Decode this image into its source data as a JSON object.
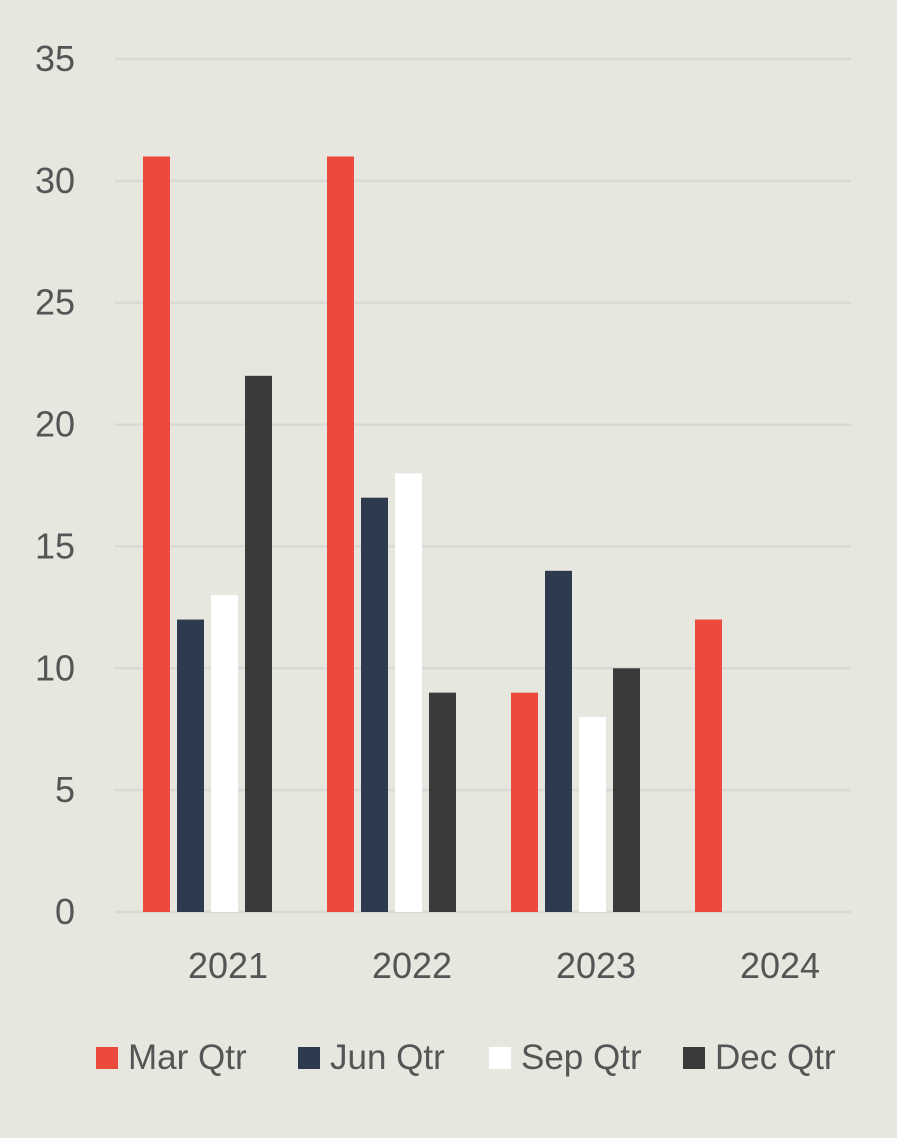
{
  "chart_data": {
    "type": "bar",
    "title": "",
    "xlabel": "",
    "ylabel": "",
    "categories": [
      "2021",
      "2022",
      "2023",
      "2024"
    ],
    "series": [
      {
        "name": "Mar Qtr",
        "color": "#ec4a3d",
        "values": [
          31,
          31,
          9,
          12
        ]
      },
      {
        "name": "Jun Qtr",
        "color": "#2e3b4e",
        "values": [
          12,
          17,
          14,
          null
        ]
      },
      {
        "name": "Sep Qtr",
        "color": "#ffffff",
        "values": [
          13,
          18,
          8,
          null
        ]
      },
      {
        "name": "Dec Qtr",
        "color": "#3a3a38",
        "values": [
          22,
          9,
          10,
          null
        ]
      }
    ],
    "ylim": [
      0,
      35
    ],
    "yticks": [
      0,
      5,
      10,
      15,
      20,
      25,
      30,
      35
    ],
    "grid": true,
    "legend_position": "bottom"
  }
}
